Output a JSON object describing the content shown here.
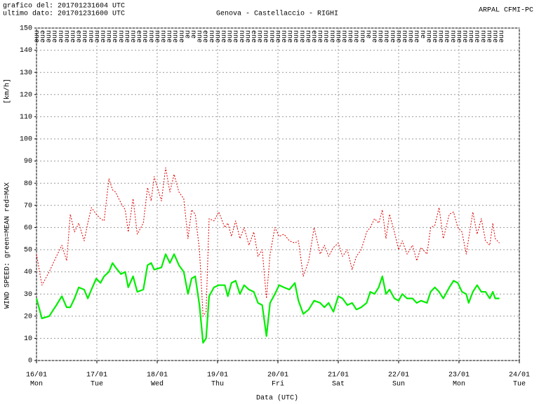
{
  "chart_data": {
    "type": "line",
    "header": [
      "grafico del: 201701231604 UTC",
      "ultimo dato: 201701231600 UTC"
    ],
    "title": "Genova - Castellaccio - RIGHI",
    "source": "ARPAL CFMI-PC",
    "ylabel": "WIND SPEED: green=MEAN  red=MAX",
    "yunit": "[km/h]",
    "xlabel": "Data (UTC)",
    "xlim": [
      16,
      24
    ],
    "xticks": [
      {
        "value": 16,
        "label": "16/01"
      },
      {
        "value": 17,
        "label": "17/01"
      },
      {
        "value": 18,
        "label": "18/01"
      },
      {
        "value": 19,
        "label": "19/01"
      },
      {
        "value": 20,
        "label": "20/01"
      },
      {
        "value": 21,
        "label": "21/01"
      },
      {
        "value": 22,
        "label": "22/01"
      },
      {
        "value": 23,
        "label": "23/01"
      },
      {
        "value": 24,
        "label": "24/01"
      }
    ],
    "xtick_weekdays": [
      "Mon",
      "Tue",
      "Wed",
      "Thu",
      "Fri",
      "Sat",
      "Sun",
      "Mon",
      "Tue"
    ],
    "ylim": [
      0,
      150
    ],
    "yticks": [
      0,
      10,
      20,
      30,
      40,
      50,
      60,
      70,
      80,
      90,
      100,
      110,
      120,
      130,
      140,
      150
    ],
    "grid": true,
    "x": [
      16.0,
      16.09,
      16.21,
      16.33,
      16.42,
      16.5,
      16.56,
      16.63,
      16.7,
      16.79,
      16.85,
      16.91,
      16.99,
      17.06,
      17.12,
      17.2,
      17.26,
      17.31,
      17.4,
      17.47,
      17.52,
      17.6,
      17.67,
      17.77,
      17.84,
      17.9,
      17.95,
      18.07,
      18.14,
      18.21,
      18.28,
      18.36,
      18.44,
      18.51,
      18.57,
      18.63,
      18.7,
      18.76,
      18.81,
      18.86,
      18.94,
      19.02,
      19.12,
      19.17,
      19.23,
      19.3,
      19.37,
      19.44,
      19.52,
      19.6,
      19.67,
      19.74,
      19.81,
      19.87,
      19.95,
      20.02,
      20.1,
      20.19,
      20.28,
      20.34,
      20.42,
      20.51,
      20.6,
      20.7,
      20.77,
      20.84,
      20.92,
      21.0,
      21.07,
      21.15,
      21.23,
      21.3,
      21.38,
      21.47,
      21.53,
      21.6,
      21.67,
      21.73,
      21.79,
      21.85,
      21.93,
      22.0,
      22.06,
      22.14,
      22.23,
      22.3,
      22.37,
      22.47,
      22.53,
      22.6,
      22.67,
      22.74,
      22.84,
      22.91,
      22.98,
      23.05,
      23.12,
      23.16,
      23.23,
      23.3,
      23.37,
      23.44,
      23.51,
      23.56,
      23.6,
      23.67
    ],
    "series": [
      {
        "name": "MEAN",
        "color": "#00ee00",
        "style": "solid",
        "values": [
          28,
          19,
          20,
          25,
          29,
          24,
          24,
          28,
          33,
          32,
          28,
          32,
          37,
          35,
          38,
          40,
          44,
          42,
          39,
          40,
          33,
          38,
          31,
          32,
          43,
          44,
          41,
          42,
          48,
          44,
          48,
          43,
          40,
          30,
          37,
          38,
          25,
          8,
          10,
          29,
          33,
          34,
          34,
          29,
          35,
          36,
          30,
          34,
          32,
          31,
          26,
          25,
          11,
          26,
          30,
          34,
          33,
          32,
          35,
          27,
          21,
          23,
          27,
          26,
          24,
          26,
          22,
          29,
          28,
          25,
          26,
          23,
          24,
          26,
          31,
          30,
          33,
          38,
          30,
          32,
          28,
          27,
          30,
          28,
          28,
          26,
          27,
          26,
          31,
          33,
          31,
          28,
          33,
          36,
          35,
          31,
          30,
          26,
          31,
          34,
          31,
          31,
          28,
          31,
          28,
          28
        ]
      },
      {
        "name": "MAX",
        "color": "#dd0000",
        "style": "dotted",
        "values": [
          48,
          34,
          40,
          47,
          52,
          45,
          66,
          58,
          62,
          54,
          62,
          69,
          66,
          64,
          63,
          82,
          77,
          76,
          71,
          68,
          58,
          73,
          57,
          62,
          78,
          72,
          83,
          72,
          87,
          76,
          84,
          76,
          73,
          55,
          68,
          66,
          50,
          20,
          22,
          64,
          63,
          67,
          60,
          62,
          56,
          63,
          55,
          60,
          52,
          58,
          47,
          50,
          28,
          48,
          60,
          56,
          57,
          54,
          53,
          54,
          38,
          45,
          60,
          48,
          52,
          47,
          51,
          53,
          47,
          50,
          41,
          47,
          50,
          58,
          60,
          64,
          62,
          68,
          55,
          66,
          58,
          50,
          54,
          48,
          52,
          45,
          51,
          48,
          60,
          61,
          69,
          55,
          66,
          67,
          60,
          58,
          48,
          55,
          67,
          57,
          64,
          54,
          52,
          62,
          55,
          53
        ]
      }
    ],
    "directions": {
      "x": [
        16.0,
        16.1,
        16.2,
        16.3,
        16.4,
        16.5,
        16.6,
        16.7,
        16.8,
        16.9,
        17.0,
        17.1,
        17.2,
        17.3,
        17.4,
        17.5,
        17.6,
        17.7,
        17.8,
        17.9,
        18.0,
        18.1,
        18.2,
        18.3,
        18.4,
        18.5,
        18.6,
        18.7,
        18.8,
        18.9,
        19.0,
        19.1,
        19.2,
        19.3,
        19.4,
        19.5,
        19.6,
        19.7,
        19.8,
        19.9,
        20.0,
        20.1,
        20.2,
        20.3,
        20.4,
        20.5,
        20.6,
        20.7,
        20.8,
        20.9,
        21.0,
        21.1,
        21.2,
        21.3,
        21.4,
        21.5,
        21.6,
        21.7,
        21.8,
        21.9,
        22.0,
        22.1,
        22.2,
        22.3,
        22.4,
        22.5,
        22.6,
        22.7,
        22.8,
        22.9,
        23.0,
        23.1,
        23.2,
        23.3,
        23.4,
        23.5,
        23.6,
        23.7
      ],
      "labels": [
        "nne",
        "ene",
        "nne",
        "nne",
        "nne",
        "nne",
        "nne",
        "ene",
        "nne",
        "nne",
        "nne",
        "nne",
        "nne",
        "nne",
        "nne",
        "nne",
        "nne",
        "ene",
        "nne",
        "nne",
        "nne",
        "nne",
        "nne",
        "nne",
        "nne",
        "ne",
        "ne",
        "nne",
        "ene",
        "nne",
        "nne",
        "nne",
        "nne",
        "nne",
        "nne",
        "nne",
        "ene",
        "nne",
        "nne",
        "nne",
        "nne",
        "nne",
        "nne",
        "nne",
        "nne",
        "nne",
        "ene",
        "nne",
        "nne",
        "nne",
        "nne",
        "nne",
        "nne",
        "nne",
        "nne",
        "ne",
        "nne",
        "nne",
        "nne",
        "nne",
        "nne",
        "nne",
        "nne",
        "nne",
        "ne",
        "nne",
        "nne",
        "nne",
        "nne",
        "nne",
        "nne",
        "nne",
        "nne",
        "nne",
        "nne",
        "nne",
        "nne",
        "nne"
      ]
    }
  }
}
